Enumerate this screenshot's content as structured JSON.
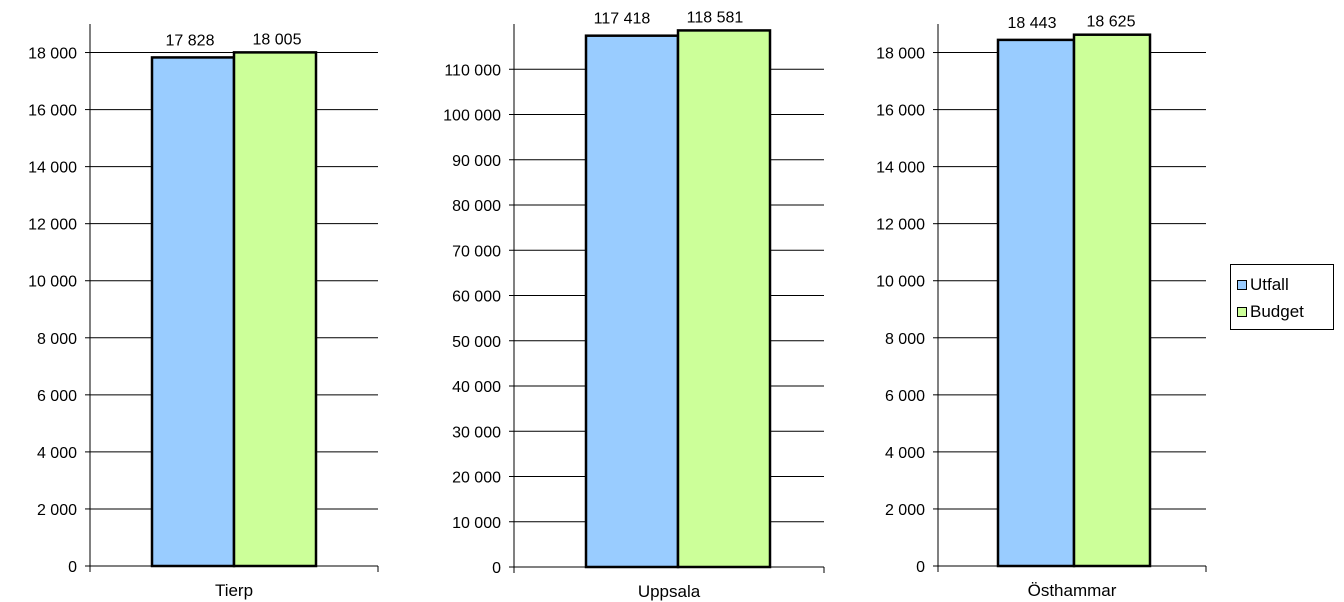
{
  "chart_data": [
    {
      "type": "bar",
      "categories": [
        "Tierp"
      ],
      "series": [
        {
          "name": "Utfall",
          "values": [
            17828
          ]
        },
        {
          "name": "Budget",
          "values": [
            18005
          ]
        }
      ],
      "data_labels": [
        "17 828",
        "18 005"
      ],
      "ylim": [
        0,
        19000
      ],
      "yticks": [
        0,
        2000,
        4000,
        6000,
        8000,
        10000,
        12000,
        14000,
        16000,
        18000
      ],
      "ytick_labels": [
        "0",
        "2 000",
        "4 000",
        "6 000",
        "8 000",
        "10 000",
        "12 000",
        "14 000",
        "16 000",
        "18 000"
      ],
      "grid": true
    },
    {
      "type": "bar",
      "categories": [
        "Uppsala"
      ],
      "series": [
        {
          "name": "Utfall",
          "values": [
            117418
          ]
        },
        {
          "name": "Budget",
          "values": [
            118581
          ]
        }
      ],
      "data_labels": [
        "117 418",
        "118 581"
      ],
      "ylim": [
        0,
        120000
      ],
      "yticks": [
        0,
        10000,
        20000,
        30000,
        40000,
        50000,
        60000,
        70000,
        80000,
        90000,
        100000,
        110000
      ],
      "ytick_labels": [
        "0",
        "10 000",
        "20 000",
        "30 000",
        "40 000",
        "50 000",
        "60 000",
        "70 000",
        "80 000",
        "90 000",
        "100 000",
        "110 000"
      ],
      "grid": true
    },
    {
      "type": "bar",
      "categories": [
        "Östhammar"
      ],
      "series": [
        {
          "name": "Utfall",
          "values": [
            18443
          ]
        },
        {
          "name": "Budget",
          "values": [
            18625
          ]
        }
      ],
      "data_labels": [
        "18 443",
        "18 625"
      ],
      "ylim": [
        0,
        19000
      ],
      "yticks": [
        0,
        2000,
        4000,
        6000,
        8000,
        10000,
        12000,
        14000,
        16000,
        18000
      ],
      "ytick_labels": [
        "0",
        "2 000",
        "4 000",
        "6 000",
        "8 000",
        "10 000",
        "12 000",
        "14 000",
        "16 000",
        "18 000"
      ],
      "grid": true
    }
  ],
  "legend": {
    "placement": "right",
    "items": [
      {
        "label": "Utfall",
        "color": "#99ccff"
      },
      {
        "label": "Budget",
        "color": "#ccff99"
      }
    ]
  }
}
